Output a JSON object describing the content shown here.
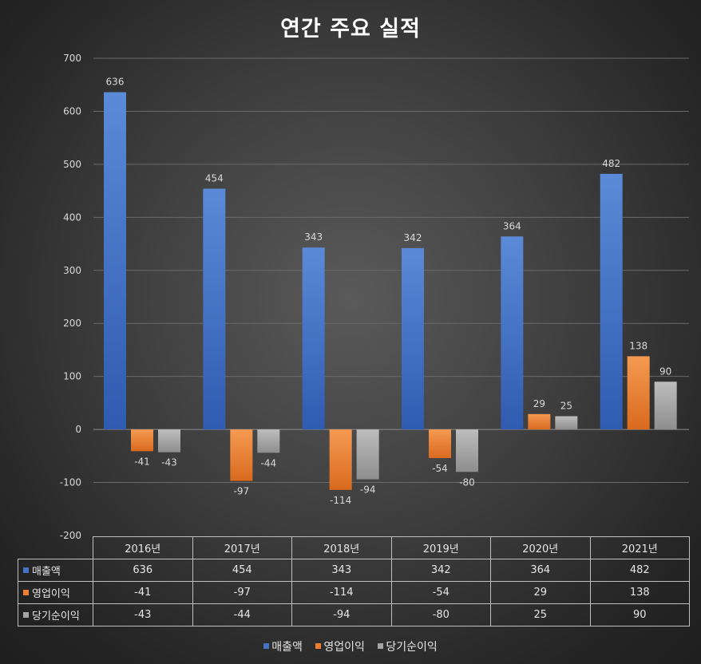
{
  "chart_data": {
    "type": "bar",
    "title": "연간 주요 실적",
    "categories": [
      "2016년",
      "2017년",
      "2018년",
      "2019년",
      "2020년",
      "2021년"
    ],
    "series": [
      {
        "name": "매출액",
        "color": "#4472c4",
        "values": [
          636,
          454,
          343,
          342,
          364,
          482
        ]
      },
      {
        "name": "영업이익",
        "color": "#ed7d31",
        "values": [
          -41,
          -97,
          -114,
          -54,
          29,
          138
        ]
      },
      {
        "name": "당기순이익",
        "color": "#a5a5a5",
        "values": [
          -43,
          -44,
          -94,
          -80,
          25,
          90
        ]
      }
    ],
    "ylim": [
      -200,
      700
    ],
    "yticks": [
      700,
      600,
      500,
      400,
      300,
      200,
      100,
      0,
      -100,
      -200
    ],
    "grid": true,
    "legend": "bottom",
    "data_table": true
  }
}
